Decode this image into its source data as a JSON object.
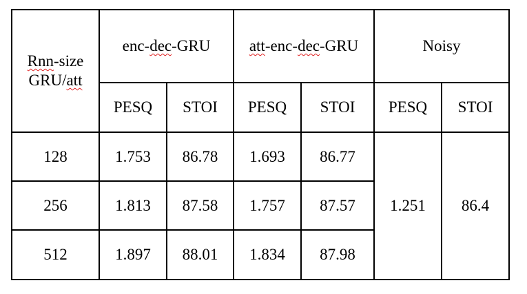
{
  "table": {
    "corner_header": {
      "line1_word": "Rnn",
      "line1_rest": "-size",
      "line2_prefix": "GRU/",
      "line2_word": "att"
    },
    "groups": [
      {
        "prefix": "enc-",
        "word": "dec",
        "suffix": "-GRU"
      },
      {
        "word1": "att",
        "mid": "-enc-",
        "word2": "dec",
        "suffix": "-GRU"
      },
      {
        "label": "Noisy"
      }
    ],
    "metrics": [
      "PESQ",
      "STOI",
      "PESQ",
      "STOI",
      "PESQ",
      "STOI"
    ],
    "rows": [
      {
        "size": "128",
        "enc_pesq": "1.753",
        "enc_stoi": "86.78",
        "att_pesq": "1.693",
        "att_stoi": "86.77"
      },
      {
        "size": "256",
        "enc_pesq": "1.813",
        "enc_stoi": "87.58",
        "att_pesq": "1.757",
        "att_stoi": "87.57"
      },
      {
        "size": "512",
        "enc_pesq": "1.897",
        "enc_stoi": "88.01",
        "att_pesq": "1.834",
        "att_stoi": "87.98"
      }
    ],
    "noisy": {
      "pesq": "1.251",
      "stoi": "86.4"
    }
  },
  "colors": {
    "border": "#000000",
    "spellcheck_squiggle": "#e02020"
  }
}
